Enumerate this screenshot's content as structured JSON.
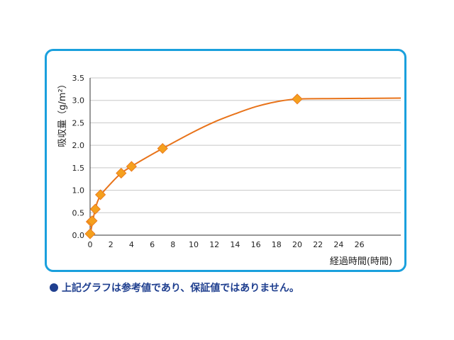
{
  "chart_data": {
    "type": "line",
    "title": "",
    "ylabel": "吸収量（g/m²）",
    "xlabel": "経過時間(時間)",
    "ylim": [
      0,
      3.5
    ],
    "xlim": [
      0,
      30
    ],
    "yticks": [
      "0.0",
      "0.5",
      "1.0",
      "1.5",
      "2.0",
      "2.5",
      "3.0",
      "3.5"
    ],
    "xticks": [
      "0",
      "2",
      "4",
      "6",
      "8",
      "10",
      "12",
      "14",
      "16",
      "18",
      "20",
      "22",
      "24",
      "26"
    ],
    "grid": true,
    "series": [
      {
        "markers": [
          {
            "x": 0,
            "y": 0.03
          },
          {
            "x": 0.1,
            "y": 0.3
          },
          {
            "x": 0.2,
            "y": 0.32
          },
          {
            "x": 0.5,
            "y": 0.58
          },
          {
            "x": 1,
            "y": 0.9
          },
          {
            "x": 3,
            "y": 1.38
          },
          {
            "x": 4,
            "y": 1.53
          },
          {
            "x": 7,
            "y": 1.93
          },
          {
            "x": 20,
            "y": 3.03
          }
        ],
        "curve": [
          {
            "x": 0,
            "y": 0.0
          },
          {
            "x": 0.5,
            "y": 0.58
          },
          {
            "x": 1,
            "y": 0.88
          },
          {
            "x": 2,
            "y": 1.15
          },
          {
            "x": 3,
            "y": 1.38
          },
          {
            "x": 4,
            "y": 1.53
          },
          {
            "x": 5,
            "y": 1.67
          },
          {
            "x": 7,
            "y": 1.93
          },
          {
            "x": 10,
            "y": 2.3
          },
          {
            "x": 12,
            "y": 2.52
          },
          {
            "x": 14,
            "y": 2.7
          },
          {
            "x": 16,
            "y": 2.86
          },
          {
            "x": 18,
            "y": 2.97
          },
          {
            "x": 20,
            "y": 3.03
          },
          {
            "x": 24,
            "y": 3.04
          },
          {
            "x": 30,
            "y": 3.05
          }
        ]
      }
    ],
    "colors": {
      "line": "#e8731a",
      "marker": "#f5a01e",
      "grid": "#c8c8c8",
      "frame": "#1aa0dd"
    }
  },
  "note": "上記グラフは参考値であり、保証値ではありません。"
}
